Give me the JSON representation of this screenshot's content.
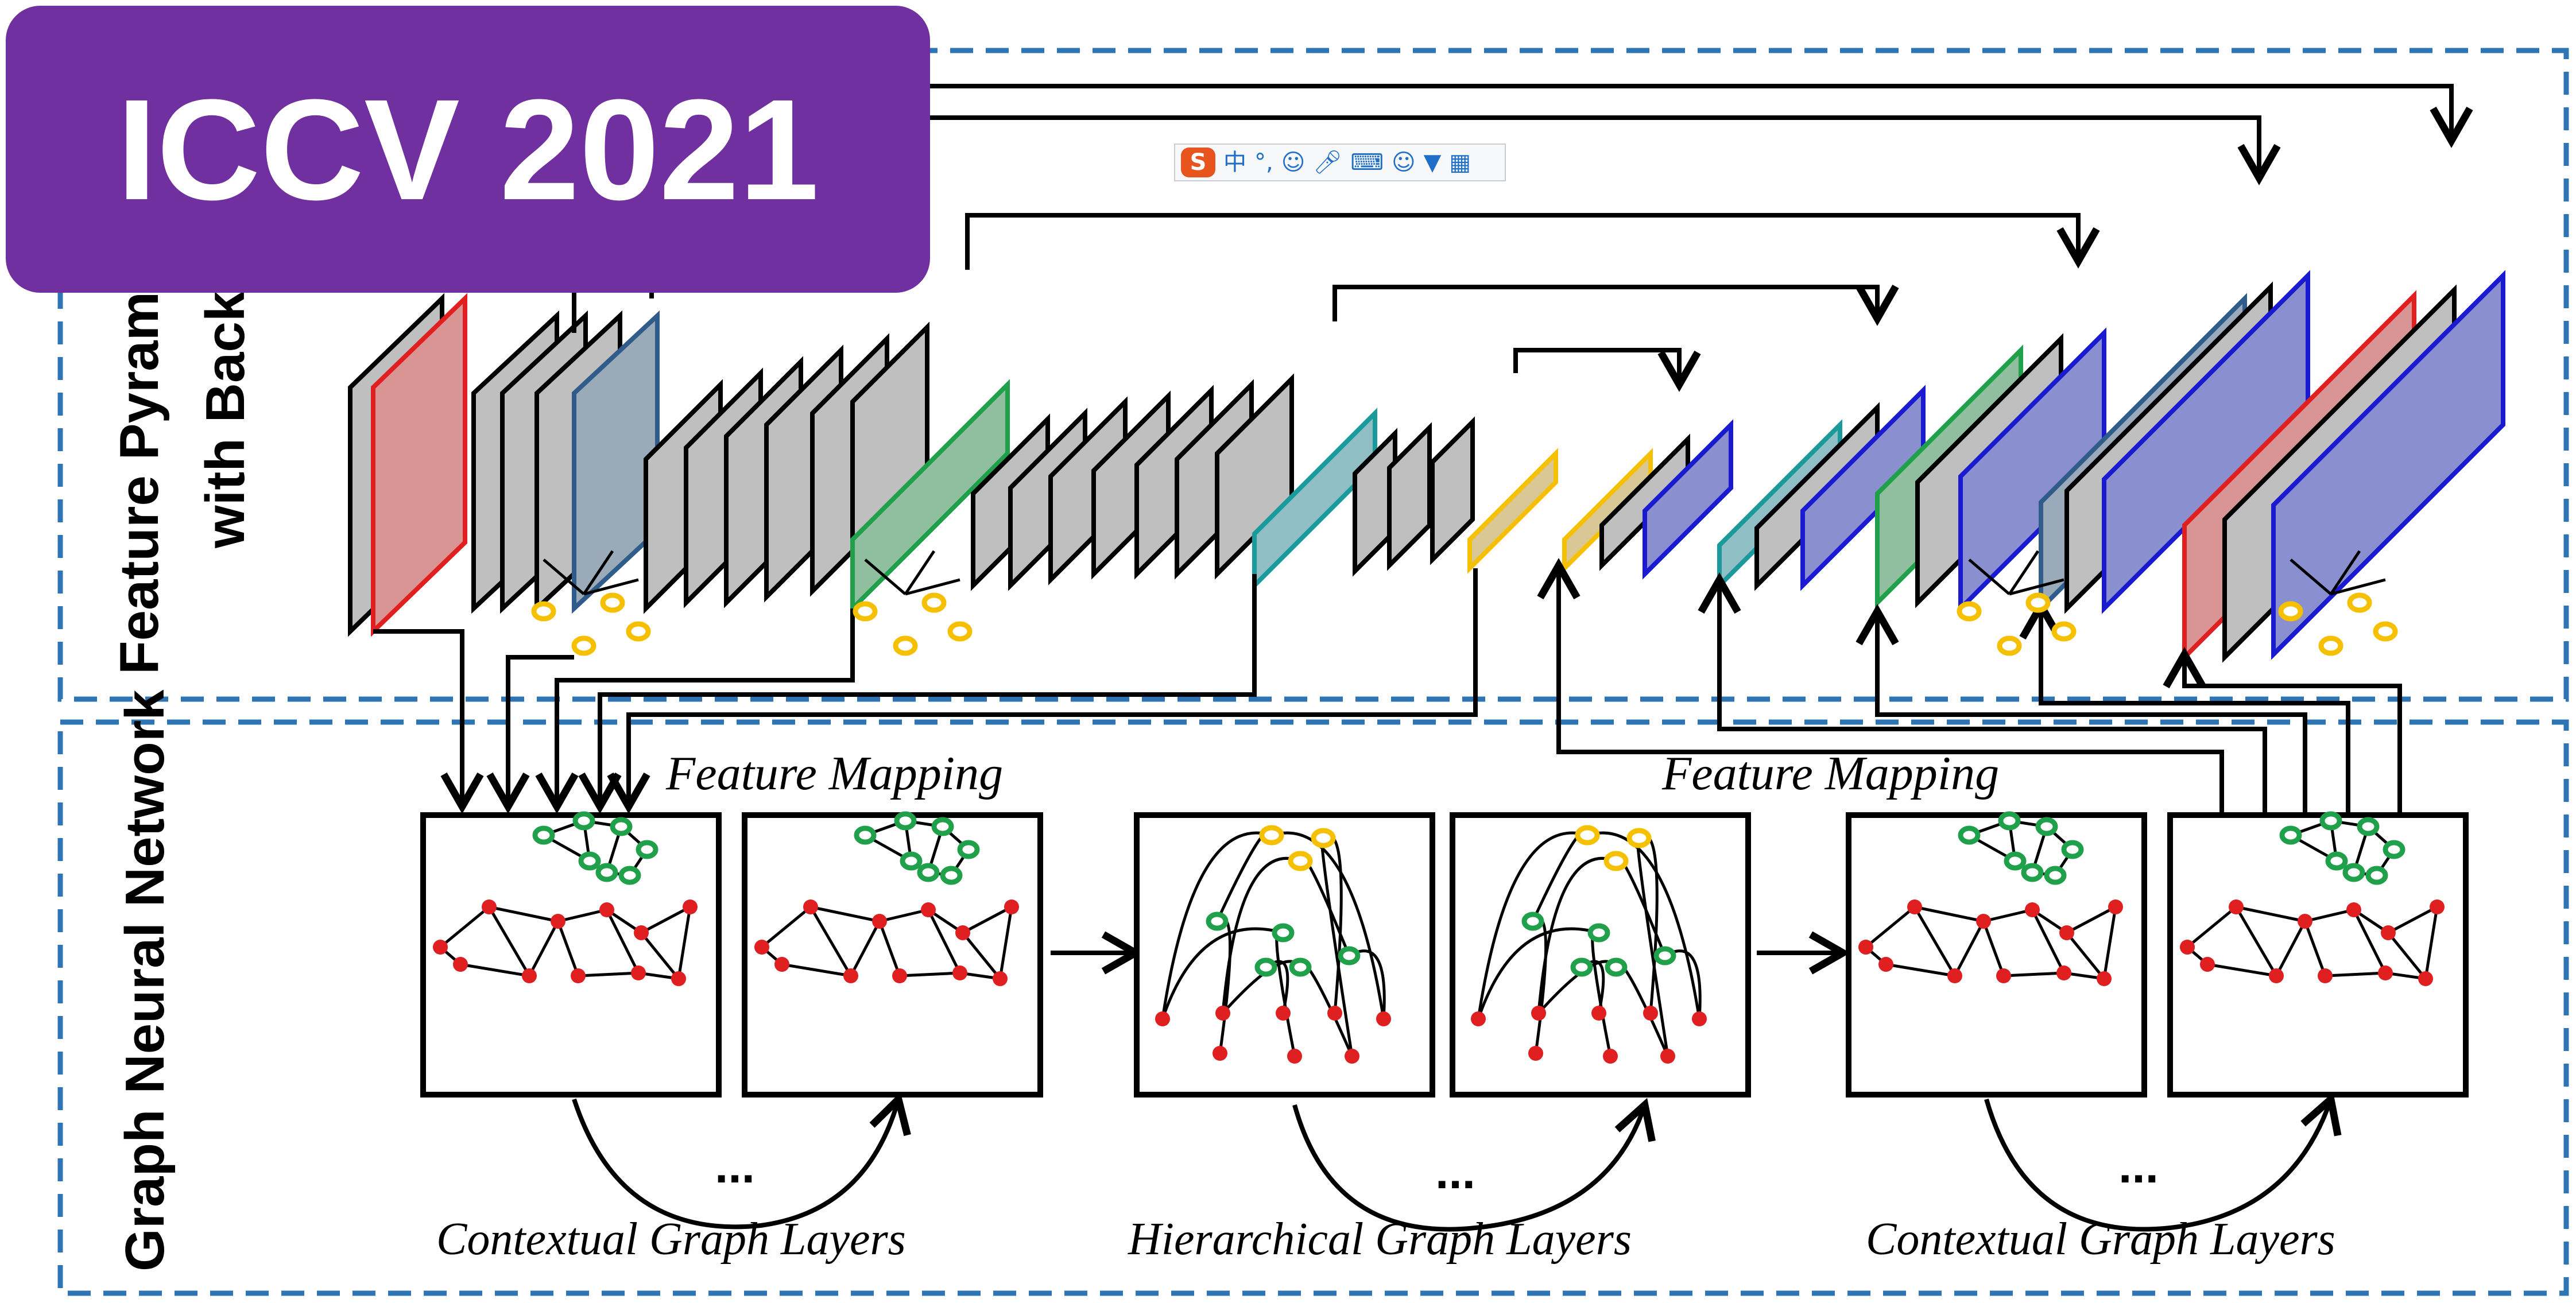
{
  "badge": {
    "text": "ICCV 2021",
    "color": "#7030a0"
  },
  "ime_toolbar": {
    "logo": "S",
    "items": [
      "中",
      "°,",
      "☺",
      "mic-icon",
      "keyboard-icon",
      "user-icon",
      "shirt-icon",
      "grid-icon"
    ]
  },
  "sections": {
    "top_label_line1": "Feature Pyramid",
    "top_label_line2": "with Backbo",
    "bottom_label": "Graph Neural Network"
  },
  "labels": {
    "feature_mapping_left": "Feature Mapping",
    "feature_mapping_right": "Feature Mapping",
    "layer_group_1": "Contextual Graph Layers",
    "layer_group_2": "Hierarchical Graph Layers",
    "layer_group_3": "Contextual Graph Layers",
    "ellipsis": "..."
  },
  "colors": {
    "dash": "#2e75b6",
    "gray_fill": "#bfbfbf",
    "red_fill": "#d99594",
    "red_edge": "#e02020",
    "slate_fill": "#9aaab8",
    "slate_edge": "#2f5c8a",
    "green_fill": "#8fbf9f",
    "green_edge": "#21a04b",
    "teal_fill": "#8fbfc4",
    "teal_edge": "#1a9a9a",
    "yellow_fill": "#d9c795",
    "yellow_edge": "#f5c000",
    "blue_fill": "#8a8fd0",
    "blue_edge": "#1a1ad0",
    "node_yellow": "#f5c000",
    "node_green": "#21a04b",
    "node_red": "#e02020"
  }
}
